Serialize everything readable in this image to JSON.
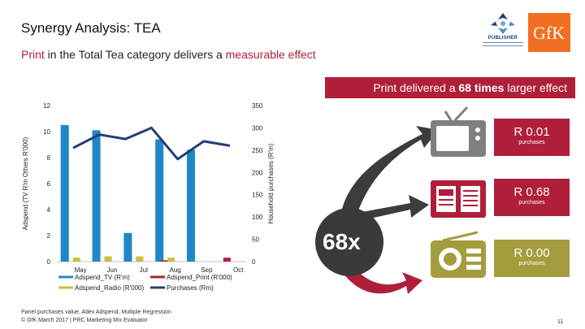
{
  "title": "Synergy Analysis: TEA",
  "subtitle": {
    "part1": "Print",
    "part2": " in the Total Tea category delivers a ",
    "part3": "measurable effect"
  },
  "logos": {
    "publisher": "PUBLISHER",
    "gfk": "GfK"
  },
  "banner": {
    "pre": "Print delivered a ",
    "bold": "68 times",
    "post": " larger effect"
  },
  "chart_data": {
    "type": "bar",
    "categories": [
      "May",
      "Jun",
      "Jul",
      "Aug",
      "Sep",
      "Oct"
    ],
    "ylabel": "Adspend (TV R'm Others R'000)",
    "y2label": "Household purchases (R'm)",
    "ylim": [
      0,
      12
    ],
    "y2lim": [
      0,
      350
    ],
    "yticks": [
      "0",
      "2",
      "4",
      "6",
      "8",
      "10",
      "12"
    ],
    "y2ticks": [
      "0",
      "50",
      "100",
      "150",
      "200",
      "250",
      "300",
      "350"
    ],
    "series": [
      {
        "name": "Adspend_TV (R'm)",
        "type": "bar",
        "color": "#1e88c8",
        "values": [
          10.5,
          10.1,
          2.2,
          9.4,
          8.6,
          0.0
        ]
      },
      {
        "name": "Adspend_Print (R'000)",
        "type": "bar",
        "color": "#b01f3a",
        "values": [
          0.0,
          0.0,
          0.0,
          0.1,
          0.0,
          0.3
        ]
      },
      {
        "name": "Adspend_Radio (R'000)",
        "type": "bar",
        "color": "#c8c23a",
        "values": [
          0.3,
          0.4,
          0.4,
          0.3,
          0.0,
          0.0
        ]
      },
      {
        "name": "Purchases (Rm)",
        "type": "line",
        "color": "#243f73",
        "x": [
          "Apr",
          "May",
          "Jun",
          "Jul",
          "Aug",
          "Sep",
          "Oct"
        ],
        "values": [
          255,
          285,
          275,
          300,
          230,
          270,
          260
        ]
      }
    ]
  },
  "effects": [
    {
      "icon": "tv-icon",
      "value": "R 0.01",
      "sub": "purchases"
    },
    {
      "icon": "newspaper-icon",
      "value": "R 0.68",
      "sub": "purchases"
    },
    {
      "icon": "radio-icon",
      "value": "R 0.00",
      "sub": "purchases"
    }
  ],
  "multiplier": "68x",
  "colors": {
    "accent": "#b01f3a",
    "tv": "#1e88c8",
    "radio": "#c8c23a",
    "line": "#243f73",
    "icon_gray": "#7f7f7f",
    "icon_olive": "#a39d3e"
  },
  "footer": {
    "line1": "Panel purchases value, Adex Adspend, Multiple Regression",
    "line2": "© GfK March 2017 | PRC Marketing Mix Evaluator"
  },
  "page_number": "11"
}
